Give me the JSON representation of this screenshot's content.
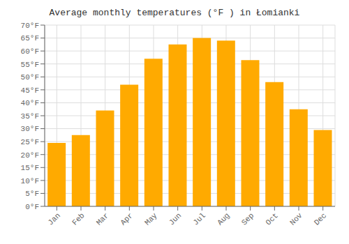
{
  "chart_data": {
    "type": "bar",
    "title": "Average monthly temperatures (°F ) in Łomianki",
    "categories": [
      "Jan",
      "Feb",
      "Mar",
      "Apr",
      "May",
      "Jun",
      "Jul",
      "Aug",
      "Sep",
      "Oct",
      "Nov",
      "Dec"
    ],
    "values": [
      24.5,
      27.5,
      37.0,
      47.0,
      57.0,
      62.5,
      65.0,
      64.0,
      56.5,
      48.0,
      37.5,
      29.5
    ],
    "color": "#FFAA00",
    "ylim": [
      0,
      70
    ],
    "yticks": [
      {
        "value": 0,
        "label": "0°F"
      },
      {
        "value": 5,
        "label": "5°F"
      },
      {
        "value": 10,
        "label": "10°F"
      },
      {
        "value": 15,
        "label": "15°F"
      },
      {
        "value": 20,
        "label": "20°F"
      },
      {
        "value": 25,
        "label": "25°F"
      },
      {
        "value": 30,
        "label": "30°F"
      },
      {
        "value": 35,
        "label": "35°F"
      },
      {
        "value": 40,
        "label": "40°F"
      },
      {
        "value": 45,
        "label": "45°F"
      },
      {
        "value": 50,
        "label": "50°F"
      },
      {
        "value": 55,
        "label": "55°F"
      },
      {
        "value": 60,
        "label": "60°F"
      },
      {
        "value": 65,
        "label": "65°F"
      },
      {
        "value": 70,
        "label": "70°F"
      }
    ],
    "grid": true
  }
}
